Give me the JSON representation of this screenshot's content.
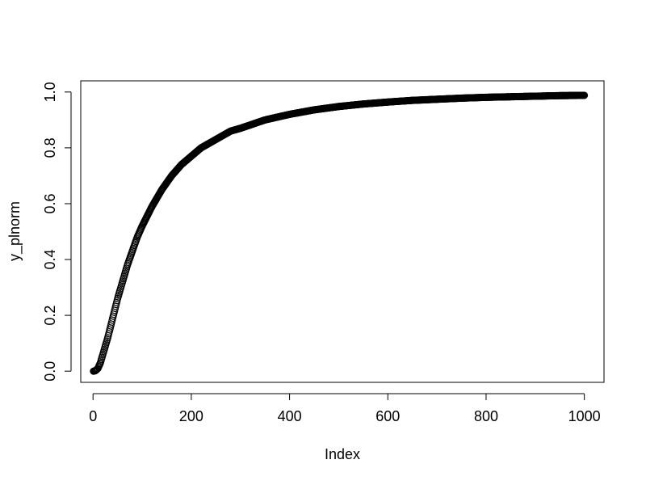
{
  "chart_data": {
    "type": "scatter",
    "title": "",
    "xlabel": "Index",
    "ylabel": "y_plnorm",
    "xlim": [
      -25,
      1040
    ],
    "ylim": [
      -0.04,
      1.04
    ],
    "x_ticks": [
      "0",
      "200",
      "400",
      "600",
      "800",
      "1000"
    ],
    "y_ticks": [
      "0.0",
      "0.2",
      "0.4",
      "0.6",
      "0.8",
      "1.0"
    ],
    "grid": false,
    "legend": "none",
    "marker": "open-circle",
    "series": [
      {
        "x": [
          1,
          5,
          10,
          15,
          20,
          25,
          30,
          40,
          50,
          60,
          70,
          80,
          90,
          100,
          120,
          140,
          160,
          180,
          200,
          220,
          250,
          280,
          300,
          350,
          400,
          450,
          500,
          550,
          600,
          650,
          700,
          750,
          800,
          850,
          900,
          950,
          1000
        ],
        "y": [
          0.0,
          0.002,
          0.01,
          0.03,
          0.06,
          0.09,
          0.12,
          0.19,
          0.26,
          0.32,
          0.38,
          0.43,
          0.48,
          0.52,
          0.59,
          0.65,
          0.7,
          0.74,
          0.77,
          0.8,
          0.83,
          0.86,
          0.87,
          0.9,
          0.92,
          0.936,
          0.948,
          0.957,
          0.964,
          0.97,
          0.974,
          0.978,
          0.981,
          0.983,
          0.985,
          0.987,
          0.988
        ]
      }
    ]
  }
}
